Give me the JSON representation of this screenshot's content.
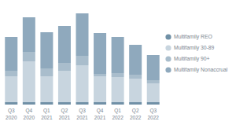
{
  "chart_data": {
    "type": "bar",
    "stacked": true,
    "legend": "right",
    "grid": false,
    "tick_labels": "x",
    "categories": [
      "Q3 2020",
      "Q4 2020",
      "Q1 2021",
      "Q2 2021",
      "Q3 2021",
      "Q4 2021",
      "Q1 2022",
      "Q2 2022",
      "Q3 2022"
    ],
    "ylim": [
      0,
      120
    ],
    "series": [
      {
        "name": "Multifamily REO",
        "color": "#7090a6",
        "values": [
          3,
          3,
          3,
          3,
          3,
          3,
          3,
          3,
          3
        ]
      },
      {
        "name": "Multifamily 30-89",
        "color": "#c8d5df",
        "values": [
          33,
          52,
          33,
          40,
          47,
          33,
          32,
          30,
          24
        ]
      },
      {
        "name": "Multifamily 90+",
        "color": "#a9bdcc",
        "values": [
          7,
          12,
          10,
          10,
          12,
          3,
          5,
          5,
          4
        ]
      },
      {
        "name": "Multifamily Nonaccrual",
        "color": "#8fa9bd",
        "values": [
          43,
          44,
          46,
          47,
          54,
          52,
          46,
          38,
          32
        ]
      }
    ]
  }
}
